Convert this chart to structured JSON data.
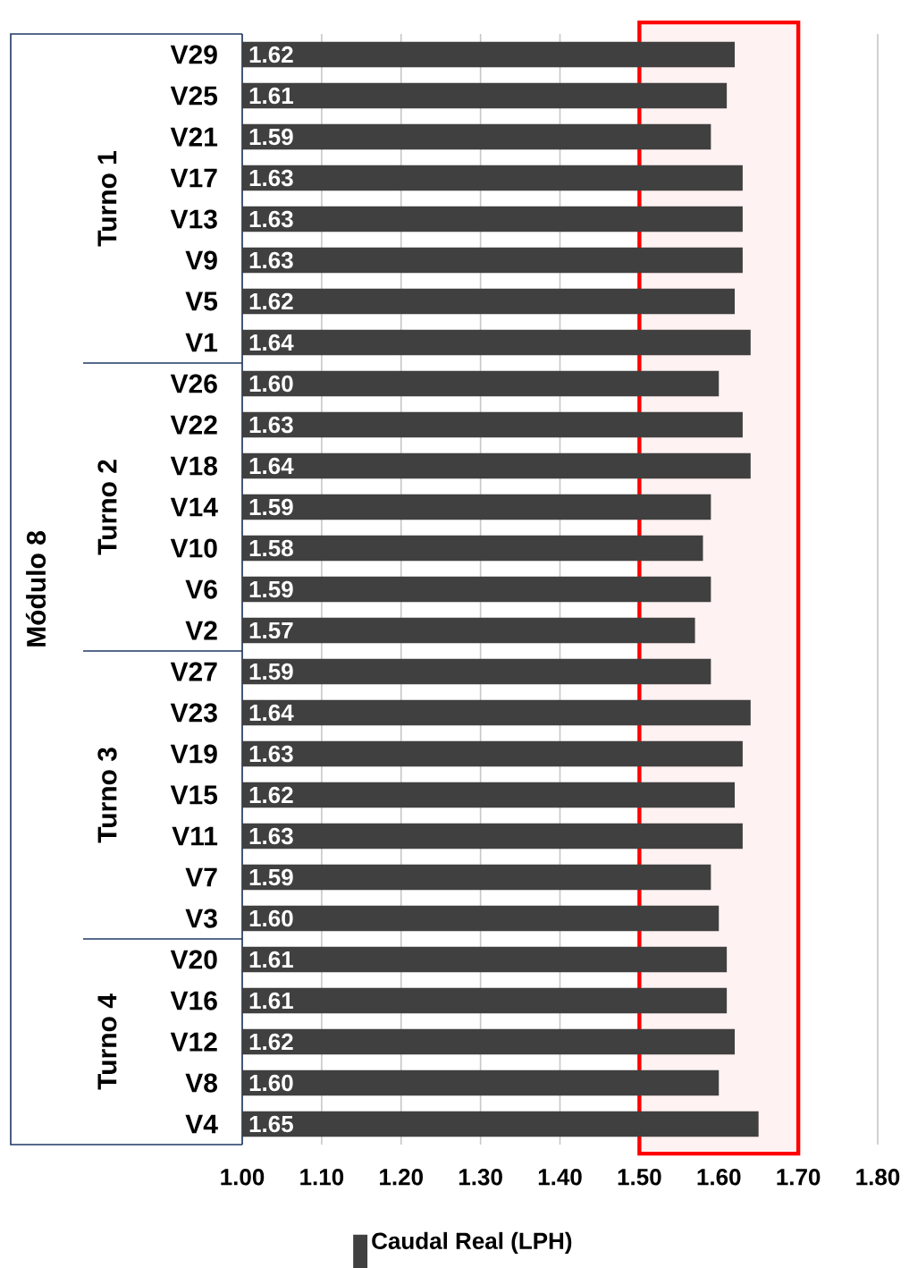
{
  "chart_data": {
    "type": "bar",
    "orientation": "horizontal",
    "categories": [
      "V29",
      "V25",
      "V21",
      "V17",
      "V13",
      "V9",
      "V5",
      "V1",
      "V26",
      "V22",
      "V18",
      "V14",
      "V10",
      "V6",
      "V2",
      "V27",
      "V23",
      "V19",
      "V15",
      "V11",
      "V7",
      "V3",
      "V20",
      "V16",
      "V12",
      "V8",
      "V4"
    ],
    "series": [
      {
        "name": "Caudal Real (LPH)",
        "color": "#404040",
        "values": [
          1.62,
          1.61,
          1.59,
          1.63,
          1.63,
          1.63,
          1.62,
          1.64,
          1.6,
          1.63,
          1.64,
          1.59,
          1.58,
          1.59,
          1.57,
          1.59,
          1.64,
          1.63,
          1.62,
          1.63,
          1.59,
          1.6,
          1.61,
          1.61,
          1.62,
          1.6,
          1.65
        ],
        "value_labels": [
          "1.62",
          "1.61",
          "1.59",
          "1.63",
          "1.63",
          "1.63",
          "1.62",
          "1.64",
          "1.60",
          "1.63",
          "1.64",
          "1.59",
          "1.58",
          "1.59",
          "1.57",
          "1.59",
          "1.64",
          "1.63",
          "1.62",
          "1.63",
          "1.59",
          "1.60",
          "1.61",
          "1.61",
          "1.62",
          "1.60",
          "1.65"
        ]
      }
    ],
    "xlim": [
      1.0,
      1.8
    ],
    "xticks": [
      {
        "value": 1.0,
        "label": "1.00"
      },
      {
        "value": 1.1,
        "label": "1.10"
      },
      {
        "value": 1.2,
        "label": "1.20"
      },
      {
        "value": 1.3,
        "label": "1.30"
      },
      {
        "value": 1.4,
        "label": "1.40"
      },
      {
        "value": 1.5,
        "label": "1.50"
      },
      {
        "value": 1.6,
        "label": "1.60"
      },
      {
        "value": 1.7,
        "label": "1.70"
      },
      {
        "value": 1.8,
        "label": "1.80"
      }
    ],
    "grid": "x",
    "legend": "bottom",
    "bands": [
      {
        "axis": "x",
        "from": 1.5,
        "to": 1.7,
        "color": "#ff0000"
      }
    ],
    "annotations": [
      "Turno 1",
      "Turno 2",
      "Turno 3",
      "Turno 4",
      "Módulo 8"
    ]
  }
}
